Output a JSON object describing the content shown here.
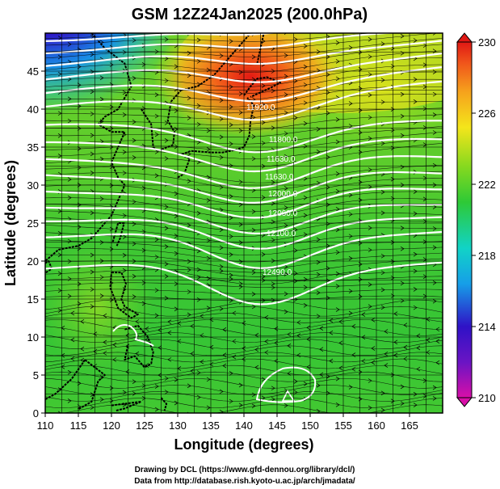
{
  "title": "GSM 12Z24Jan2025 (200.0hPa)",
  "xlabel": "Longitude (degrees)",
  "ylabel": "Latitude  (degrees)",
  "footer": {
    "line1": "Drawing by DCL (https://www.gfd-dennou.org/library/dcl/)",
    "line2": "Data from http://database.rish.kyoto-u.ac.jp/arch/jmadata/"
  },
  "map": {
    "lon_range": [
      110,
      170
    ],
    "lat_range": [
      0,
      50
    ],
    "x_ticks": [
      "110",
      "115",
      "120",
      "125",
      "130",
      "135",
      "140",
      "145",
      "150",
      "155",
      "160",
      "165"
    ],
    "y_ticks": [
      "0",
      "5",
      "10",
      "15",
      "20",
      "25",
      "30",
      "35",
      "40",
      "45"
    ],
    "grid": true
  },
  "colorbar": {
    "min": 210,
    "max": 230,
    "tick_labels": [
      "230",
      "226",
      "222",
      "218",
      "214",
      "210"
    ],
    "colors": [
      "#d80fa8",
      "#2f12c6",
      "#169ee8",
      "#11d3c7",
      "#2ec936",
      "#86d91f",
      "#f4e51b",
      "#f6a21c",
      "#f0561b",
      "#e01814"
    ]
  },
  "contour_labels": [
    "11920.0",
    "11800.0",
    "11630.0",
    "11630.0",
    "12000.0",
    "12060.0",
    "12100.0",
    "12490.0"
  ]
}
